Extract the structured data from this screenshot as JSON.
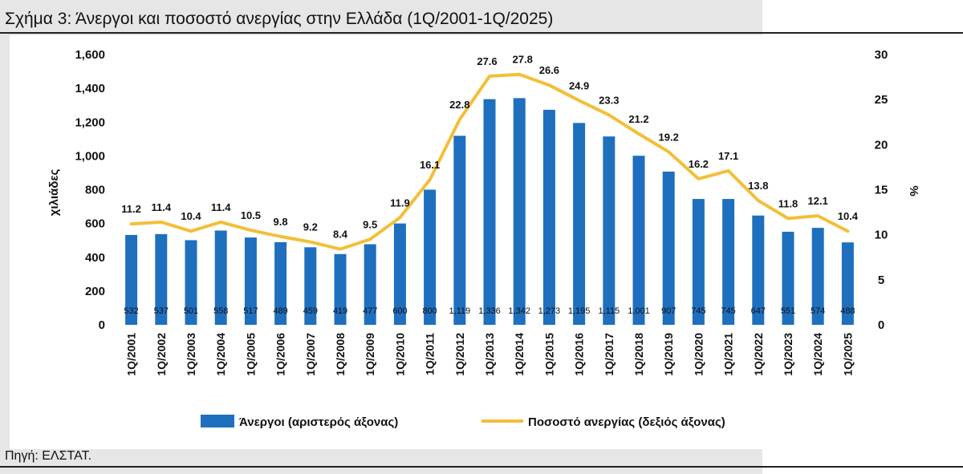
{
  "header": {
    "title": "Σχήμα 3: Άνεργοι και ποσοστό ανεργίας στην Ελλάδα (1Q/2001-1Q/2025)"
  },
  "footer": {
    "source": "Πηγή: ΕΛΣΤΑΤ."
  },
  "colors": {
    "bars": "#1f6fbf",
    "line": "#f2bf38",
    "grey_band": "#e6e6e6"
  },
  "chart_data": {
    "type": "bar",
    "categories": [
      "1Q/2001",
      "1Q/2002",
      "1Q/2003",
      "1Q/2004",
      "1Q/2005",
      "1Q/2006",
      "1Q/2007",
      "1Q/2008",
      "1Q/2009",
      "1Q/2010",
      "1Q/2011",
      "1Q/2012",
      "1Q/2013",
      "1Q/2014",
      "1Q/2015",
      "1Q/2016",
      "1Q/2017",
      "1Q/2018",
      "1Q/2019",
      "1Q/2020",
      "1Q/2021",
      "1Q/2022",
      "1Q/2023",
      "1Q/2024",
      "1Q/2025"
    ],
    "series": [
      {
        "name": "Άνεργοι (αριστερός άξονας)",
        "type": "bar",
        "axis": "left",
        "values": [
          532,
          537,
          501,
          558,
          517,
          489,
          459,
          419,
          477,
          600,
          800,
          1119,
          1336,
          1342,
          1273,
          1195,
          1115,
          1001,
          907,
          745,
          745,
          647,
          551,
          574,
          488
        ],
        "labels": [
          "532",
          "537",
          "501",
          "558",
          "517",
          "489",
          "459",
          "419",
          "477",
          "600",
          "800",
          "1,119",
          "1,336",
          "1,342",
          "1,273",
          "1,195",
          "1,115",
          "1,001",
          "907",
          "745",
          "745",
          "647",
          "551",
          "574",
          "488"
        ]
      },
      {
        "name": "Ποσοστό ανεργίας (δεξιός άξονας)",
        "type": "line",
        "axis": "right",
        "values": [
          11.2,
          11.4,
          10.4,
          11.4,
          10.5,
          9.8,
          9.2,
          8.4,
          9.5,
          11.9,
          16.1,
          22.8,
          27.6,
          27.8,
          26.6,
          24.9,
          23.3,
          21.2,
          19.2,
          16.2,
          17.1,
          13.8,
          11.8,
          12.1,
          10.4
        ],
        "labels": [
          "11.2",
          "11.4",
          "10.4",
          "11.4",
          "10.5",
          "9.8",
          "9.2",
          "8.4",
          "9.5",
          "11.9",
          "16.1",
          "22.8",
          "27.6",
          "27.8",
          "26.6",
          "24.9",
          "23.3",
          "21.2",
          "19.2",
          "16.2",
          "17.1",
          "13.8",
          "11.8",
          "12.1",
          "10.4"
        ]
      }
    ],
    "ylabel": "χιλιάδες",
    "y2label": "%",
    "ylim": [
      0,
      1600
    ],
    "y2lim": [
      0,
      30
    ],
    "yticks": [
      "0",
      "200",
      "400",
      "600",
      "800",
      "1,000",
      "1,200",
      "1,400",
      "1,600"
    ],
    "y2ticks": [
      "0",
      "5",
      "10",
      "15",
      "20",
      "25",
      "30"
    ],
    "grid": false,
    "legend_position": "bottom"
  }
}
